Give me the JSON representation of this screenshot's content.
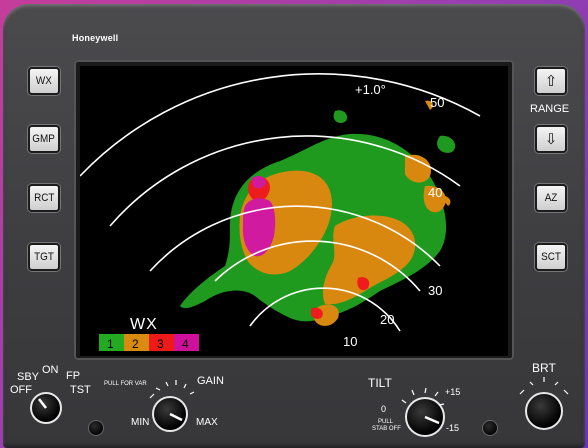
{
  "brand": "Honeywell",
  "left_buttons": [
    {
      "name": "wx-button",
      "label": "WX"
    },
    {
      "name": "gmp-button",
      "label": "GMP"
    },
    {
      "name": "rct-button",
      "label": "RCT"
    },
    {
      "name": "tgt-button",
      "label": "TGT"
    }
  ],
  "right_buttons": {
    "range_up_icon": "up-arrow",
    "range_label": "RANGE",
    "range_down_icon": "down-arrow",
    "az_label": "AZ",
    "sct_label": "SCT"
  },
  "radar": {
    "tilt_readout": "+1.0°",
    "range_rings": [
      "10",
      "20",
      "30",
      "40",
      "50"
    ],
    "mode": "WX",
    "legend": [
      {
        "level": "1",
        "color": "#22aa22"
      },
      {
        "level": "2",
        "color": "#d98a10"
      },
      {
        "level": "3",
        "color": "#ee1a1a"
      },
      {
        "level": "4",
        "color": "#d0109a"
      }
    ]
  },
  "mode_switch": {
    "sby": "SBY",
    "off": "OFF",
    "on": "ON",
    "fp": "FP",
    "tst": "TST"
  },
  "gain": {
    "title": "GAIN",
    "pull": "PULL FOR VAR",
    "min": "MIN",
    "max": "MAX"
  },
  "tilt": {
    "title": "TILT",
    "zero": "0",
    "plus": "+15",
    "minus": "-15",
    "pull": "PULL",
    "stab": "STAB OFF"
  },
  "brt": {
    "title": "BRT"
  }
}
